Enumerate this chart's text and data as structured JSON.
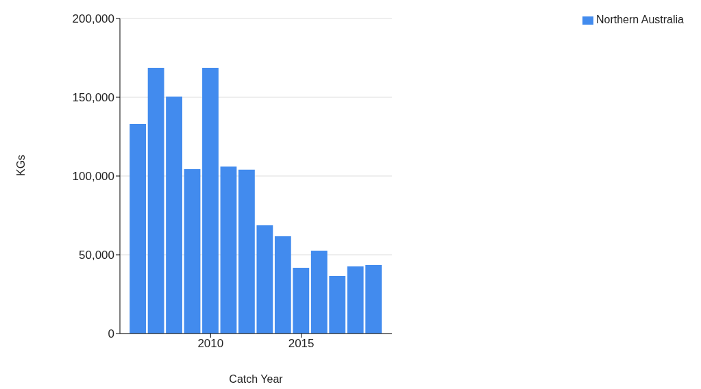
{
  "chart_data": {
    "type": "bar",
    "xlabel": "Catch Year",
    "ylabel": "KGs",
    "x": [
      2006,
      2007,
      2008,
      2009,
      2010,
      2011,
      2012,
      2013,
      2014,
      2015,
      2016,
      2017,
      2018,
      2019
    ],
    "series": [
      {
        "name": "Northern Australia",
        "color": "#428bee",
        "values": [
          133000,
          168700,
          150400,
          104300,
          168700,
          106000,
          104000,
          68700,
          61700,
          41700,
          52600,
          36500,
          42600,
          43500
        ]
      }
    ],
    "xlim": [
      2005,
      2020
    ],
    "xticks": [
      2010,
      2015
    ],
    "ylim": [
      0,
      200000
    ],
    "yticks": [
      {
        "value": 0,
        "label": "0"
      },
      {
        "value": 50000,
        "label": "50,000"
      },
      {
        "value": 100000,
        "label": "100,000"
      },
      {
        "value": 150000,
        "label": "150,000"
      },
      {
        "value": 200000,
        "label": "200,000"
      }
    ],
    "grid": "y",
    "legend": "top right"
  }
}
